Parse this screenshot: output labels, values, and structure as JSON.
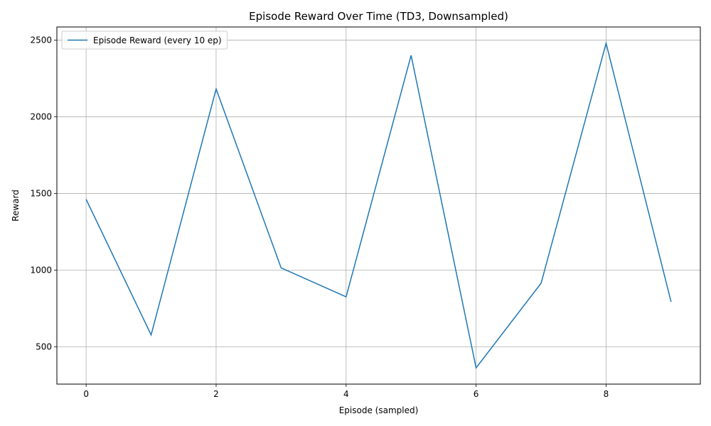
{
  "chart_data": {
    "type": "line",
    "title": "Episode Reward Over Time (TD3, Downsampled)",
    "xlabel": "Episode (sampled)",
    "ylabel": "Reward",
    "x": [
      0,
      1,
      2,
      3,
      4,
      5,
      6,
      7,
      8,
      9
    ],
    "series": [
      {
        "name": "Episode Reward (every 10 ep)",
        "color": "#1f77b4",
        "values": [
          1462,
          578,
          2182,
          1015,
          826,
          2401,
          363,
          915,
          2480,
          793
        ]
      }
    ],
    "xlim": [
      -0.45,
      9.45
    ],
    "ylim": [
      257,
      2586
    ],
    "xticks": [
      0,
      2,
      4,
      6,
      8
    ],
    "xtick_labels": [
      "0",
      "2",
      "4",
      "6",
      "8"
    ],
    "yticks": [
      500,
      1000,
      1500,
      2000,
      2500
    ],
    "ytick_labels": [
      "500",
      "1000",
      "1500",
      "2000",
      "2500"
    ],
    "grid": true,
    "legend_position": "upper-left",
    "grid_color": "#b0b0b0",
    "axis_color": "#000000"
  }
}
